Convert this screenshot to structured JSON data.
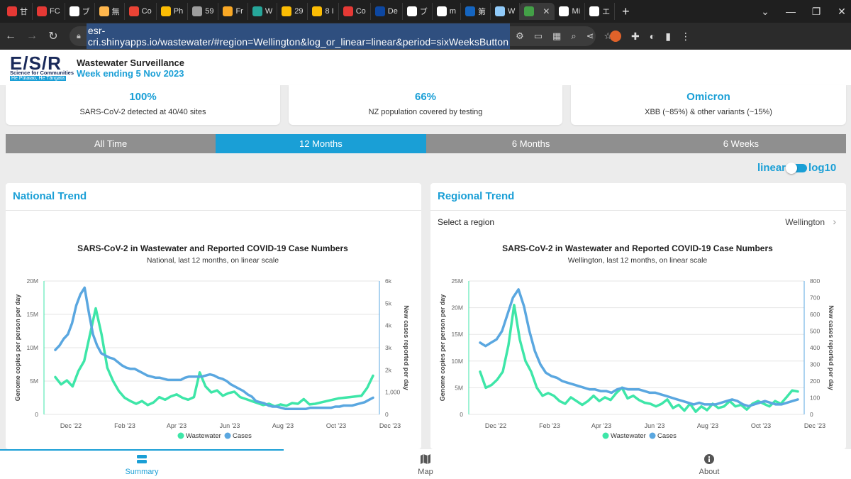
{
  "browser": {
    "tabs": [
      {
        "label": "甘",
        "color": "#e53935"
      },
      {
        "label": "FC",
        "color": "#e53935"
      },
      {
        "label": "ブ",
        "color": "#ffffff"
      },
      {
        "label": "無",
        "color": "#ffb74d"
      },
      {
        "label": "Co",
        "color": "#ea4335"
      },
      {
        "label": "Ph",
        "color": "#fbbc04"
      },
      {
        "label": "59",
        "color": "#9e9e9e"
      },
      {
        "label": "Fr",
        "color": "#f9a825"
      },
      {
        "label": "W",
        "color": "#26a69a"
      },
      {
        "label": "29",
        "color": "#fbbc04"
      },
      {
        "label": "8 I",
        "color": "#fbbc04"
      },
      {
        "label": "Co",
        "color": "#e53935"
      },
      {
        "label": "De",
        "color": "#0d47a1"
      },
      {
        "label": "ブ",
        "color": "#ffffff"
      },
      {
        "label": "m",
        "color": "#ffffff"
      },
      {
        "label": "第",
        "color": "#1565c0"
      },
      {
        "label": "W",
        "color": "#90caf9"
      },
      {
        "label": "",
        "color": "#43a047",
        "active": true
      },
      {
        "label": "Mi",
        "color": "#ffffff"
      },
      {
        "label": "エ",
        "color": "#ffffff"
      }
    ],
    "url": "esr-cri.shinyapps.io/wastewater/#region=Wellington&log_or_linear=linear&period=sixWeeksButton"
  },
  "header": {
    "logo": "E/S/R",
    "logo_sub": "Science for Communities",
    "logo_sub2": "He Pūtaiao, He Tāngata",
    "title": "Wastewater Surveillance",
    "week": "Week ending 5 Nov 2023"
  },
  "stats": [
    {
      "value": "100%",
      "desc": "SARS-CoV-2 detected at 40/40 sites"
    },
    {
      "value": "66%",
      "desc": "NZ population covered by testing"
    },
    {
      "value": "Omicron",
      "desc": "XBB (~85%) & other variants (~15%)"
    }
  ],
  "periods": [
    {
      "label": "All Time",
      "active": false
    },
    {
      "label": "12 Months",
      "active": true
    },
    {
      "label": "6 Months",
      "active": false
    },
    {
      "label": "6 Weeks",
      "active": false
    }
  ],
  "scale_toggle": {
    "left": "linear",
    "right": "log10",
    "selected": "linear"
  },
  "panels": {
    "national": {
      "title": "National Trend"
    },
    "regional": {
      "title": "Regional Trend",
      "select_label": "Select a region",
      "region": "Wellington"
    }
  },
  "bottom_nav": {
    "summary": "Summary",
    "map": "Map",
    "about": "About"
  },
  "colors": {
    "accent": "#1a9fd6",
    "wastewater": "#3ee6a8",
    "cases": "#5aa7e0"
  },
  "chart_data": [
    {
      "type": "line",
      "title": "SARS-CoV-2 in Wastewater and Reported COVID-19 Case Numbers",
      "subtitle": "National, last 12 months, on linear scale",
      "ylabel": "Genome copies per person per day",
      "ylabel_right": "New cases reported per day",
      "ylim": [
        0,
        20000000
      ],
      "ylim_right": [
        0,
        6000
      ],
      "yticks": [
        "0",
        "5M",
        "10M",
        "15M",
        "20M"
      ],
      "yticks_right": [
        "0",
        "1,000",
        "2k",
        "3k",
        "4k",
        "5k",
        "6k"
      ],
      "xticks": [
        "Dec '22",
        "Feb '23",
        "Apr '23",
        "Jun '23",
        "Aug '23",
        "Oct '23",
        "Dec '23"
      ],
      "legend": [
        "Wastewater",
        "Cases"
      ],
      "series": [
        {
          "name": "Wastewater",
          "axis": "left",
          "values": [
            5600000,
            4500000,
            5100000,
            4200000,
            6500000,
            8000000,
            12000000,
            15900000,
            12000000,
            7000000,
            5000000,
            3500000,
            2500000,
            2000000,
            1600000,
            2000000,
            1400000,
            1800000,
            2600000,
            2200000,
            2700000,
            3000000,
            2500000,
            2200000,
            2600000,
            6300000,
            4200000,
            3300000,
            3600000,
            2800000,
            3200000,
            3400000,
            2600000,
            2300000,
            2000000,
            1700000,
            1400000,
            1600000,
            1200000,
            1500000,
            1300000,
            1700000,
            1600000,
            2300000,
            1500000,
            1600000,
            1800000,
            2000000,
            2200000,
            2400000,
            2500000,
            2600000,
            2700000,
            2800000,
            4000000,
            5800000
          ]
        },
        {
          "name": "Cases",
          "axis": "right",
          "values": [
            2900,
            3100,
            3400,
            3600,
            4100,
            4900,
            5400,
            5700,
            4600,
            3600,
            3100,
            2750,
            2650,
            2550,
            2500,
            2350,
            2200,
            2100,
            2050,
            2050,
            1950,
            1850,
            1750,
            1700,
            1650,
            1650,
            1600,
            1550,
            1550,
            1550,
            1550,
            1650,
            1700,
            1700,
            1700,
            1700,
            1750,
            1800,
            1750,
            1650,
            1600,
            1500,
            1350,
            1250,
            1150,
            1050,
            900,
            800,
            600,
            550,
            500,
            400,
            350,
            350,
            300,
            250,
            250,
            250,
            250,
            250,
            250,
            300,
            300,
            300,
            300,
            300,
            300,
            350,
            350,
            400,
            400,
            400,
            450,
            500,
            550,
            650,
            750
          ]
        }
      ]
    },
    {
      "type": "line",
      "title": "SARS-CoV-2 in Wastewater and Reported COVID-19 Case Numbers",
      "subtitle": "Wellington, last 12 months, on linear scale",
      "ylabel": "Genome copies per person per day",
      "ylabel_right": "New cases reported per day",
      "ylim": [
        0,
        25000000
      ],
      "ylim_right": [
        0,
        800
      ],
      "yticks": [
        "0",
        "5M",
        "10M",
        "15M",
        "20M",
        "25M"
      ],
      "yticks_right": [
        "0",
        "100",
        "200",
        "300",
        "400",
        "500",
        "600",
        "700",
        "800"
      ],
      "xticks": [
        "Dec '22",
        "Feb '23",
        "Apr '23",
        "Jun '23",
        "Aug '23",
        "Oct '23",
        "Dec '23"
      ],
      "legend": [
        "Wastewater",
        "Cases"
      ],
      "series": [
        {
          "name": "Wastewater",
          "axis": "left",
          "values": [
            8000000,
            5000000,
            5500000,
            6500000,
            8000000,
            13000000,
            20500000,
            14000000,
            10000000,
            8000000,
            5000000,
            3500000,
            4000000,
            3500000,
            2500000,
            2000000,
            3200000,
            2500000,
            1800000,
            2500000,
            3500000,
            2500000,
            3200000,
            2700000,
            4000000,
            5000000,
            3000000,
            3500000,
            2700000,
            2200000,
            2000000,
            1500000,
            2000000,
            2800000,
            1200000,
            1800000,
            700000,
            2000000,
            500000,
            1500000,
            800000,
            2000000,
            1200000,
            1500000,
            2500000,
            1500000,
            1800000,
            900000,
            2000000,
            2500000,
            2000000,
            1500000,
            2500000,
            2000000,
            3200000,
            4500000,
            4300000
          ]
        },
        {
          "name": "Cases",
          "axis": "right",
          "values": [
            430,
            410,
            430,
            450,
            500,
            600,
            700,
            750,
            650,
            500,
            380,
            300,
            250,
            230,
            220,
            200,
            190,
            180,
            170,
            160,
            150,
            150,
            140,
            140,
            130,
            150,
            160,
            150,
            150,
            150,
            140,
            130,
            130,
            120,
            110,
            100,
            90,
            80,
            70,
            60,
            70,
            60,
            60,
            60,
            70,
            80,
            90,
            80,
            60,
            50,
            60,
            70,
            80,
            70,
            60,
            60,
            70,
            80,
            90
          ]
        }
      ]
    }
  ]
}
